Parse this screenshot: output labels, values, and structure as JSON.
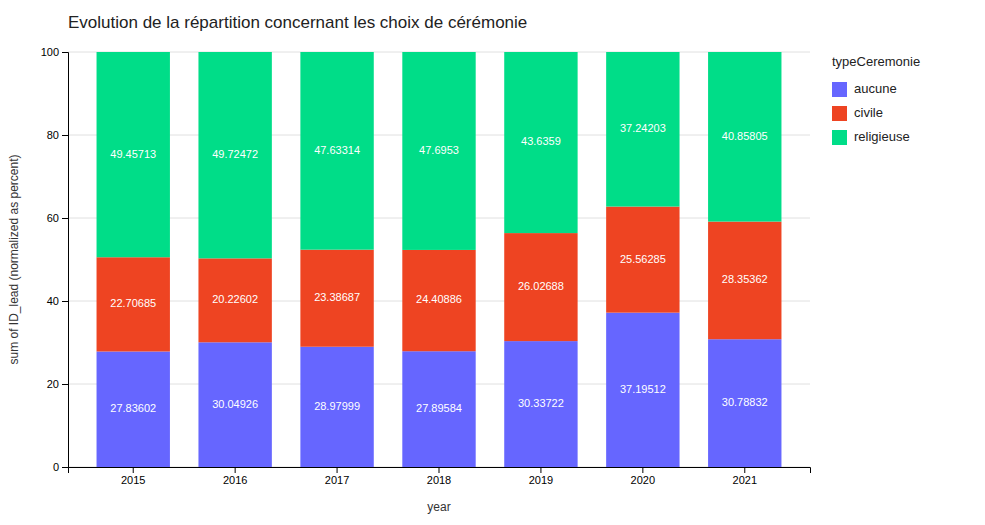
{
  "chart_data": {
    "type": "bar",
    "stacked": true,
    "title": "Evolution de la répartition concernant les choix de cérémonie",
    "x_label": "year",
    "y_label": "sum of ID_lead (normalized as percent)",
    "legend_title": "typeCeremonie",
    "legend": "right",
    "categories": [
      "2015",
      "2016",
      "2017",
      "2018",
      "2019",
      "2020",
      "2021"
    ],
    "series": [
      {
        "name": "aucune",
        "color": "#6666ff",
        "values": [
          27.83602,
          30.04926,
          28.97999,
          27.89584,
          30.33722,
          37.19512,
          30.78832
        ]
      },
      {
        "name": "civile",
        "color": "#ee4422",
        "values": [
          22.70685,
          20.22602,
          23.38687,
          24.40886,
          26.02688,
          25.56285,
          28.35362
        ]
      },
      {
        "name": "religieuse",
        "color": "#00dd88",
        "values": [
          49.45713,
          49.72472,
          47.63314,
          47.6953,
          43.6359,
          37.24203,
          40.85805
        ]
      }
    ],
    "ylim": [
      0,
      100
    ],
    "yticks": [
      0,
      20,
      40,
      60,
      80,
      100
    ],
    "grid": true,
    "data_labels": true
  }
}
